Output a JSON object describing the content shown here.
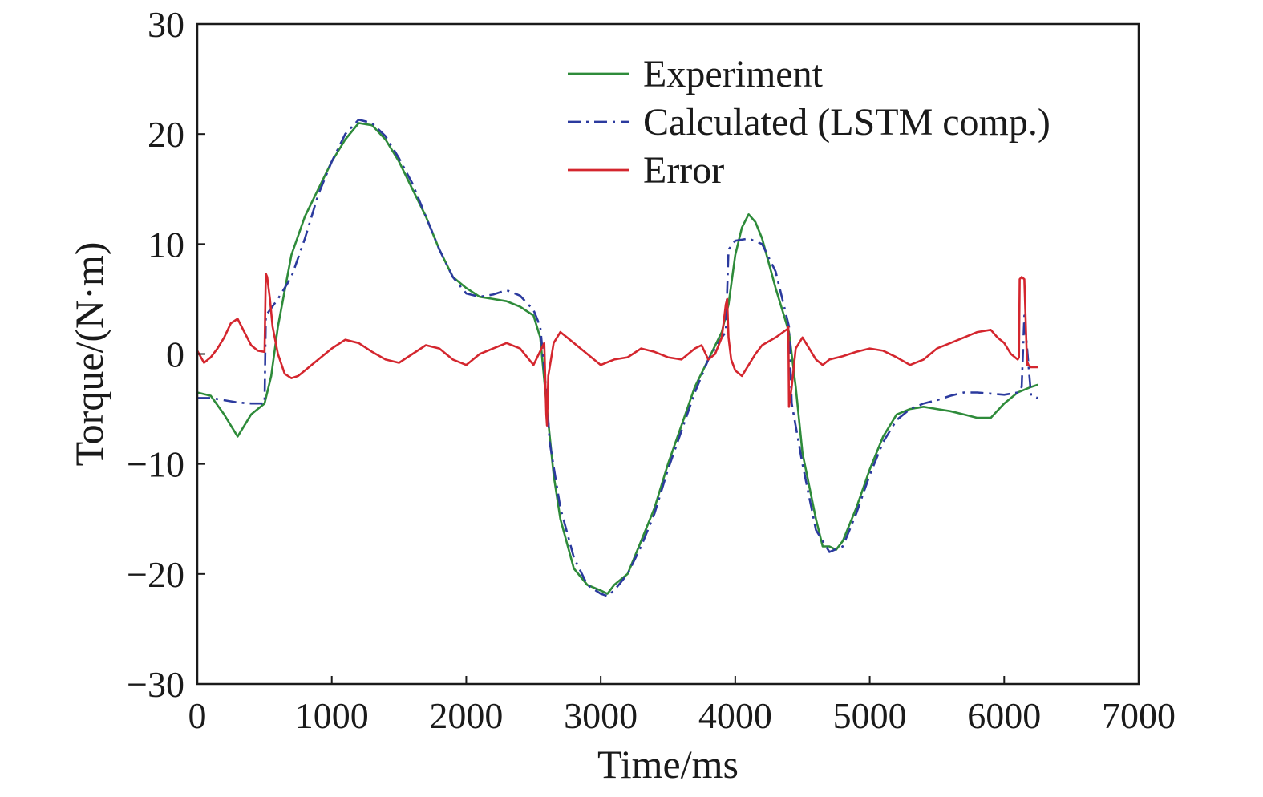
{
  "chart_data": {
    "type": "line",
    "xlabel": "Time/ms",
    "ylabel": "Torque/(N·m)",
    "xlim": [
      0,
      7000
    ],
    "ylim": [
      -30,
      30
    ],
    "xticks": [
      0,
      1000,
      2000,
      3000,
      4000,
      5000,
      6000,
      7000
    ],
    "yticks": [
      -30,
      -20,
      -10,
      0,
      10,
      20,
      30
    ],
    "xtick_labels": [
      "0",
      "1000",
      "2000",
      "3000",
      "4000",
      "5000",
      "6000",
      "7000"
    ],
    "ytick_labels": [
      "−30",
      "−20",
      "−10",
      "0",
      "10",
      "20",
      "30"
    ],
    "grid": false,
    "legend_position": "top-right",
    "series": [
      {
        "name": "Experiment",
        "color": "#2e8b3a",
        "dash": "solid",
        "x": [
          0,
          100,
          200,
          300,
          400,
          500,
          550,
          600,
          700,
          800,
          900,
          1000,
          1100,
          1200,
          1300,
          1400,
          1500,
          1600,
          1700,
          1800,
          1900,
          2000,
          2100,
          2200,
          2300,
          2400,
          2500,
          2550,
          2600,
          2650,
          2700,
          2800,
          2900,
          3000,
          3050,
          3100,
          3200,
          3300,
          3400,
          3500,
          3600,
          3700,
          3800,
          3900,
          3950,
          4000,
          4050,
          4100,
          4150,
          4200,
          4300,
          4400,
          4450,
          4500,
          4600,
          4650,
          4700,
          4750,
          4800,
          4900,
          5000,
          5100,
          5200,
          5300,
          5400,
          5500,
          5600,
          5700,
          5800,
          5900,
          6000,
          6100,
          6200,
          6250
        ],
        "values": [
          -3.5,
          -3.8,
          -5.5,
          -7.5,
          -5.5,
          -4.5,
          -2.0,
          2.5,
          9.0,
          12.5,
          15.0,
          17.5,
          19.5,
          21.0,
          20.8,
          19.5,
          17.5,
          15.0,
          12.5,
          9.5,
          7.0,
          6.0,
          5.2,
          5.0,
          4.8,
          4.3,
          3.5,
          1.5,
          -5.0,
          -11.0,
          -15.0,
          -19.5,
          -21.0,
          -21.5,
          -21.8,
          -21.0,
          -20.0,
          -17.0,
          -14.0,
          -10.0,
          -6.5,
          -3.0,
          -0.5,
          2.0,
          4.5,
          9.0,
          11.5,
          12.7,
          12.0,
          10.5,
          6.0,
          2.0,
          -3.0,
          -9.0,
          -15.0,
          -17.5,
          -17.5,
          -17.8,
          -17.0,
          -14.0,
          -10.5,
          -7.5,
          -5.5,
          -5.0,
          -4.8,
          -5.0,
          -5.2,
          -5.5,
          -5.8,
          -5.8,
          -4.5,
          -3.5,
          -3.0,
          -2.8
        ]
      },
      {
        "name": "Calculated (LSTM comp.)",
        "color": "#2b3a9e",
        "dash": "dashdot",
        "x": [
          0,
          100,
          200,
          300,
          400,
          500,
          510,
          600,
          700,
          800,
          900,
          1000,
          1100,
          1200,
          1300,
          1400,
          1500,
          1600,
          1700,
          1800,
          1900,
          2000,
          2100,
          2200,
          2300,
          2400,
          2500,
          2550,
          2600,
          2620,
          2700,
          2800,
          2900,
          3000,
          3050,
          3100,
          3200,
          3300,
          3400,
          3500,
          3600,
          3700,
          3800,
          3900,
          3930,
          3950,
          4000,
          4100,
          4200,
          4300,
          4350,
          4400,
          4420,
          4500,
          4600,
          4700,
          4800,
          4900,
          5000,
          5100,
          5200,
          5300,
          5400,
          5500,
          5600,
          5700,
          5800,
          5900,
          6000,
          6100,
          6130,
          6150,
          6200,
          6250
        ],
        "values": [
          -4.0,
          -4.0,
          -4.2,
          -4.4,
          -4.5,
          -4.5,
          3.5,
          5.0,
          7.0,
          10.5,
          14.5,
          17.5,
          20.0,
          21.3,
          21.0,
          19.8,
          17.8,
          15.5,
          12.5,
          9.5,
          7.0,
          5.5,
          5.2,
          5.4,
          5.8,
          5.3,
          4.0,
          2.5,
          -4.0,
          -8.0,
          -14.0,
          -18.5,
          -21.0,
          -21.8,
          -22.0,
          -21.5,
          -20.0,
          -17.5,
          -14.5,
          -10.5,
          -7.0,
          -3.5,
          -0.5,
          1.5,
          2.0,
          9.5,
          10.3,
          10.5,
          10.0,
          7.5,
          5.0,
          2.5,
          -4.5,
          -10.0,
          -16.0,
          -18.0,
          -17.5,
          -14.5,
          -11.0,
          -8.0,
          -6.0,
          -5.0,
          -4.5,
          -4.2,
          -3.8,
          -3.5,
          -3.5,
          -3.6,
          -3.7,
          -3.5,
          -3.0,
          3.5,
          -3.8,
          -4.0
        ]
      },
      {
        "name": "Error",
        "color": "#d4262e",
        "dash": "solid",
        "x": [
          0,
          50,
          100,
          150,
          200,
          250,
          300,
          350,
          400,
          450,
          500,
          510,
          520,
          540,
          560,
          600,
          650,
          700,
          750,
          800,
          900,
          1000,
          1100,
          1200,
          1300,
          1400,
          1500,
          1600,
          1700,
          1800,
          1900,
          2000,
          2100,
          2200,
          2300,
          2400,
          2500,
          2560,
          2580,
          2595,
          2600,
          2610,
          2650,
          2700,
          2750,
          2800,
          2900,
          3000,
          3100,
          3200,
          3300,
          3400,
          3500,
          3600,
          3700,
          3750,
          3800,
          3850,
          3900,
          3930,
          3940,
          3950,
          3970,
          4000,
          4050,
          4100,
          4150,
          4200,
          4300,
          4390,
          4395,
          4400,
          4420,
          4450,
          4500,
          4550,
          4600,
          4650,
          4700,
          4800,
          4900,
          5000,
          5100,
          5200,
          5300,
          5400,
          5500,
          5600,
          5700,
          5800,
          5900,
          5950,
          6000,
          6050,
          6100,
          6110,
          6115,
          6130,
          6150,
          6170,
          6175,
          6180,
          6200,
          6250
        ],
        "values": [
          0.3,
          -0.8,
          -0.3,
          0.5,
          1.5,
          2.8,
          3.2,
          2.0,
          0.8,
          0.3,
          0.2,
          7.3,
          7.0,
          5.0,
          2.5,
          0.0,
          -1.8,
          -2.2,
          -2.0,
          -1.5,
          -0.5,
          0.5,
          1.3,
          1.0,
          0.2,
          -0.5,
          -0.8,
          0.0,
          0.8,
          0.5,
          -0.5,
          -1.0,
          0.0,
          0.5,
          1.0,
          0.5,
          -1.0,
          0.5,
          1.0,
          -5.5,
          -6.5,
          -2.0,
          1.0,
          2.0,
          1.5,
          1.0,
          0.0,
          -1.0,
          -0.5,
          -0.3,
          0.5,
          0.2,
          -0.3,
          -0.5,
          0.5,
          0.8,
          -0.5,
          0.0,
          1.5,
          4.5,
          5.0,
          1.5,
          -0.5,
          -1.5,
          -2.0,
          -1.0,
          0.0,
          0.8,
          1.5,
          2.3,
          2.5,
          -4.8,
          -3.0,
          0.5,
          1.5,
          0.5,
          -0.5,
          -1.0,
          -0.5,
          -0.2,
          0.2,
          0.5,
          0.3,
          -0.3,
          -1.0,
          -0.5,
          0.5,
          1.0,
          1.5,
          2.0,
          2.2,
          1.5,
          1.0,
          0.0,
          -0.5,
          -0.3,
          6.8,
          7.0,
          6.8,
          -1.0,
          -0.8,
          -1.0,
          -1.2,
          -1.2
        ]
      }
    ]
  }
}
